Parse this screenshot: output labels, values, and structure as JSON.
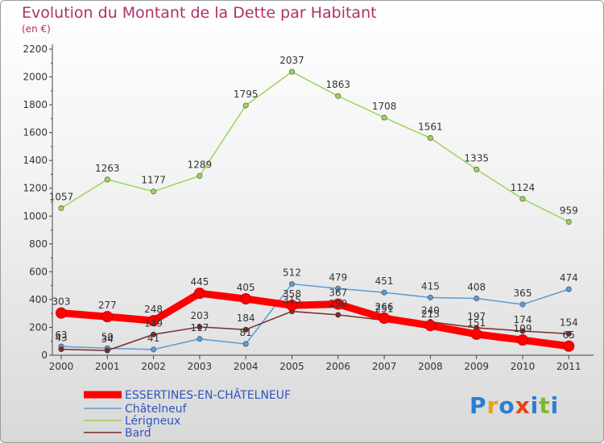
{
  "title": "Evolution du Montant de la Dette par Habitant",
  "subtitle": "(en €)",
  "logo": {
    "text": "Proxiti",
    "colors": [
      "#2a7fd4",
      "#e8a317",
      "#2a7fd4",
      "#e8431b",
      "#2a7fd4",
      "#7cba2a",
      "#2a7fd4"
    ]
  },
  "chart_data": {
    "type": "line",
    "x": [
      "2000",
      "2001",
      "2002",
      "2003",
      "2004",
      "2005",
      "2006",
      "2007",
      "2008",
      "2009",
      "2010",
      "2011"
    ],
    "ylim": [
      0,
      2200
    ],
    "yticks": [
      0,
      200,
      400,
      600,
      800,
      1000,
      1200,
      1400,
      1600,
      1800,
      2000,
      2200
    ],
    "grid": false,
    "legend_position": "bottom-left",
    "series": [
      {
        "name": "ESSERTINES-EN-CHÂTELNEUF",
        "color": "#ff0000",
        "values": [
          303,
          277,
          248,
          445,
          405,
          358,
          367,
          266,
          213,
          151,
          109,
          65
        ],
        "labels": [
          "303",
          "277",
          "248",
          "445",
          "405",
          "358",
          "367",
          "266",
          "213",
          "151",
          "109",
          "65"
        ]
      },
      {
        "name": "Châtelneuf",
        "color": "#5b9bd5",
        "values": [
          63,
          50,
          41,
          117,
          81,
          512,
          479,
          451,
          415,
          408,
          365,
          474
        ],
        "labels": [
          "63",
          "50",
          "41",
          "117",
          "81",
          "512",
          "479",
          "451",
          "415",
          "408",
          "365",
          "474"
        ]
      },
      {
        "name": "Lérigneux",
        "color": "#9bd55b",
        "values": [
          1057,
          1263,
          1177,
          1289,
          1795,
          2037,
          1863,
          1708,
          1561,
          1335,
          1124,
          959
        ],
        "labels": [
          "1057",
          "1263",
          "1177",
          "1289",
          "1795",
          "2037",
          "1863",
          "1708",
          "1561",
          "1335",
          "1124",
          "959"
        ]
      },
      {
        "name": "Bard",
        "color": "#7b2b2b",
        "values": [
          43,
          34,
          149,
          203,
          184,
          315,
          290,
          251,
          240,
          197,
          174,
          154
        ],
        "labels": [
          "43",
          "34",
          "149",
          "203",
          "184",
          "315",
          "290",
          "251",
          "240",
          "197",
          "174",
          "154"
        ]
      }
    ]
  }
}
